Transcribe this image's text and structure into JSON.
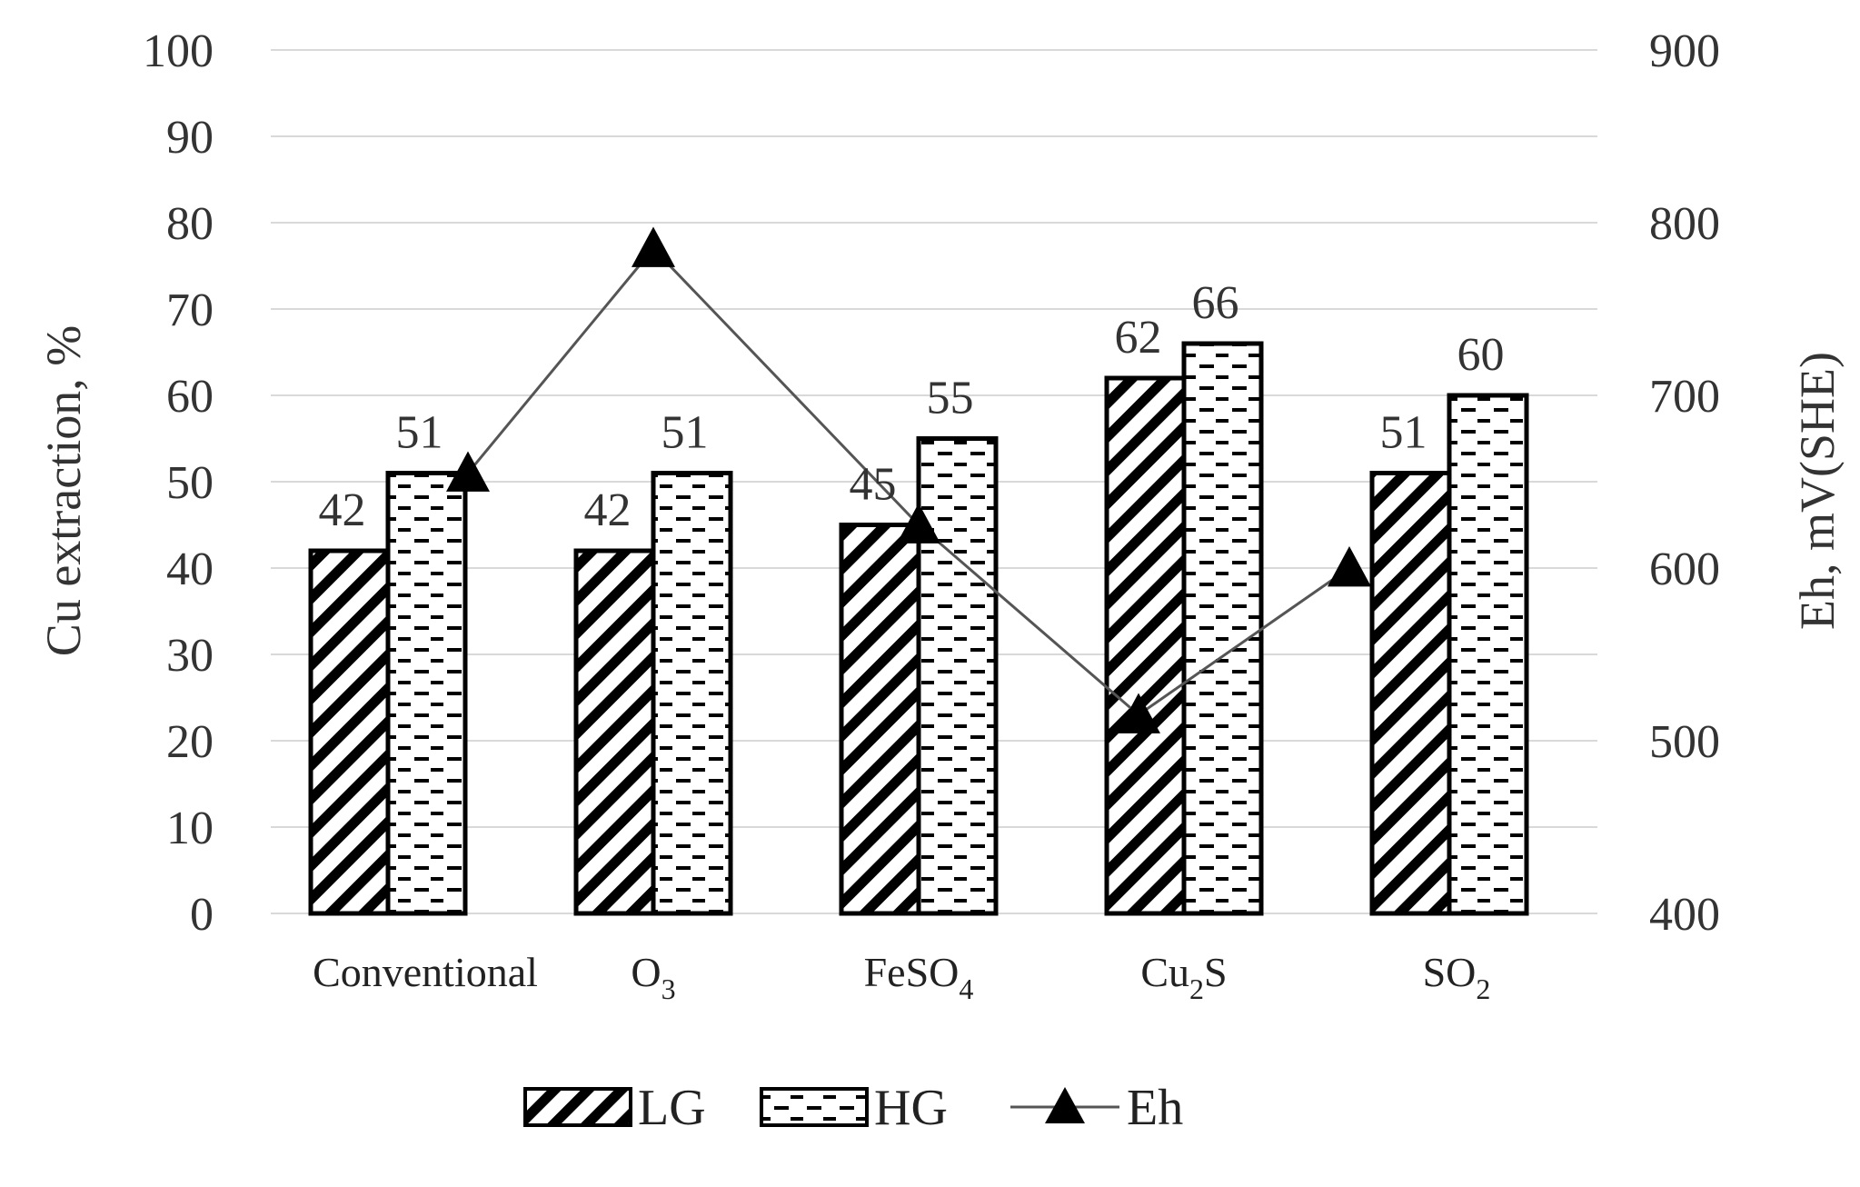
{
  "chart_data": {
    "type": "bar",
    "categories": [
      "Conventional",
      "O3",
      "FeSO4",
      "Cu2S",
      "SO2"
    ],
    "category_labels": [
      {
        "base": "Conventional",
        "sub": ""
      },
      {
        "base": "O",
        "sub": "3"
      },
      {
        "base": "FeSO",
        "sub": "4"
      },
      {
        "base": "Cu",
        "sub": "2",
        "tail": "S"
      },
      {
        "base": "SO",
        "sub": "2"
      }
    ],
    "series": [
      {
        "name": "LG",
        "axis": "left",
        "kind": "bar",
        "pattern": "diagonal-hatch",
        "values": [
          42,
          42,
          45,
          62,
          51
        ]
      },
      {
        "name": "HG",
        "axis": "left",
        "kind": "bar",
        "pattern": "dashed-hatch",
        "values": [
          51,
          51,
          55,
          66,
          60
        ]
      },
      {
        "name": "Eh",
        "axis": "right",
        "kind": "line",
        "marker": "triangle",
        "values": [
          655,
          785,
          625,
          515,
          600
        ]
      }
    ],
    "data_labels": {
      "LG": [
        "42",
        "42",
        "45",
        "62",
        "51"
      ],
      "HG": [
        "51",
        "51",
        "55",
        "66",
        "60"
      ]
    },
    "ylabel": "Cu extraction, %",
    "ylabel_right": "Eh, mV(SHE)",
    "ylim": [
      0,
      100
    ],
    "ylim_right": [
      400,
      900
    ],
    "yticks": [
      "0",
      "10",
      "20",
      "30",
      "40",
      "50",
      "60",
      "70",
      "80",
      "90",
      "100"
    ],
    "yticks_right": [
      "400",
      "500",
      "600",
      "700",
      "800",
      "900"
    ],
    "grid": true,
    "legend_position": "bottom",
    "colors": {
      "bar_stroke": "#000000",
      "bar_fill": "#ffffff",
      "line": "#555555",
      "marker": "#000000",
      "grid": "#d9d9d9"
    }
  }
}
